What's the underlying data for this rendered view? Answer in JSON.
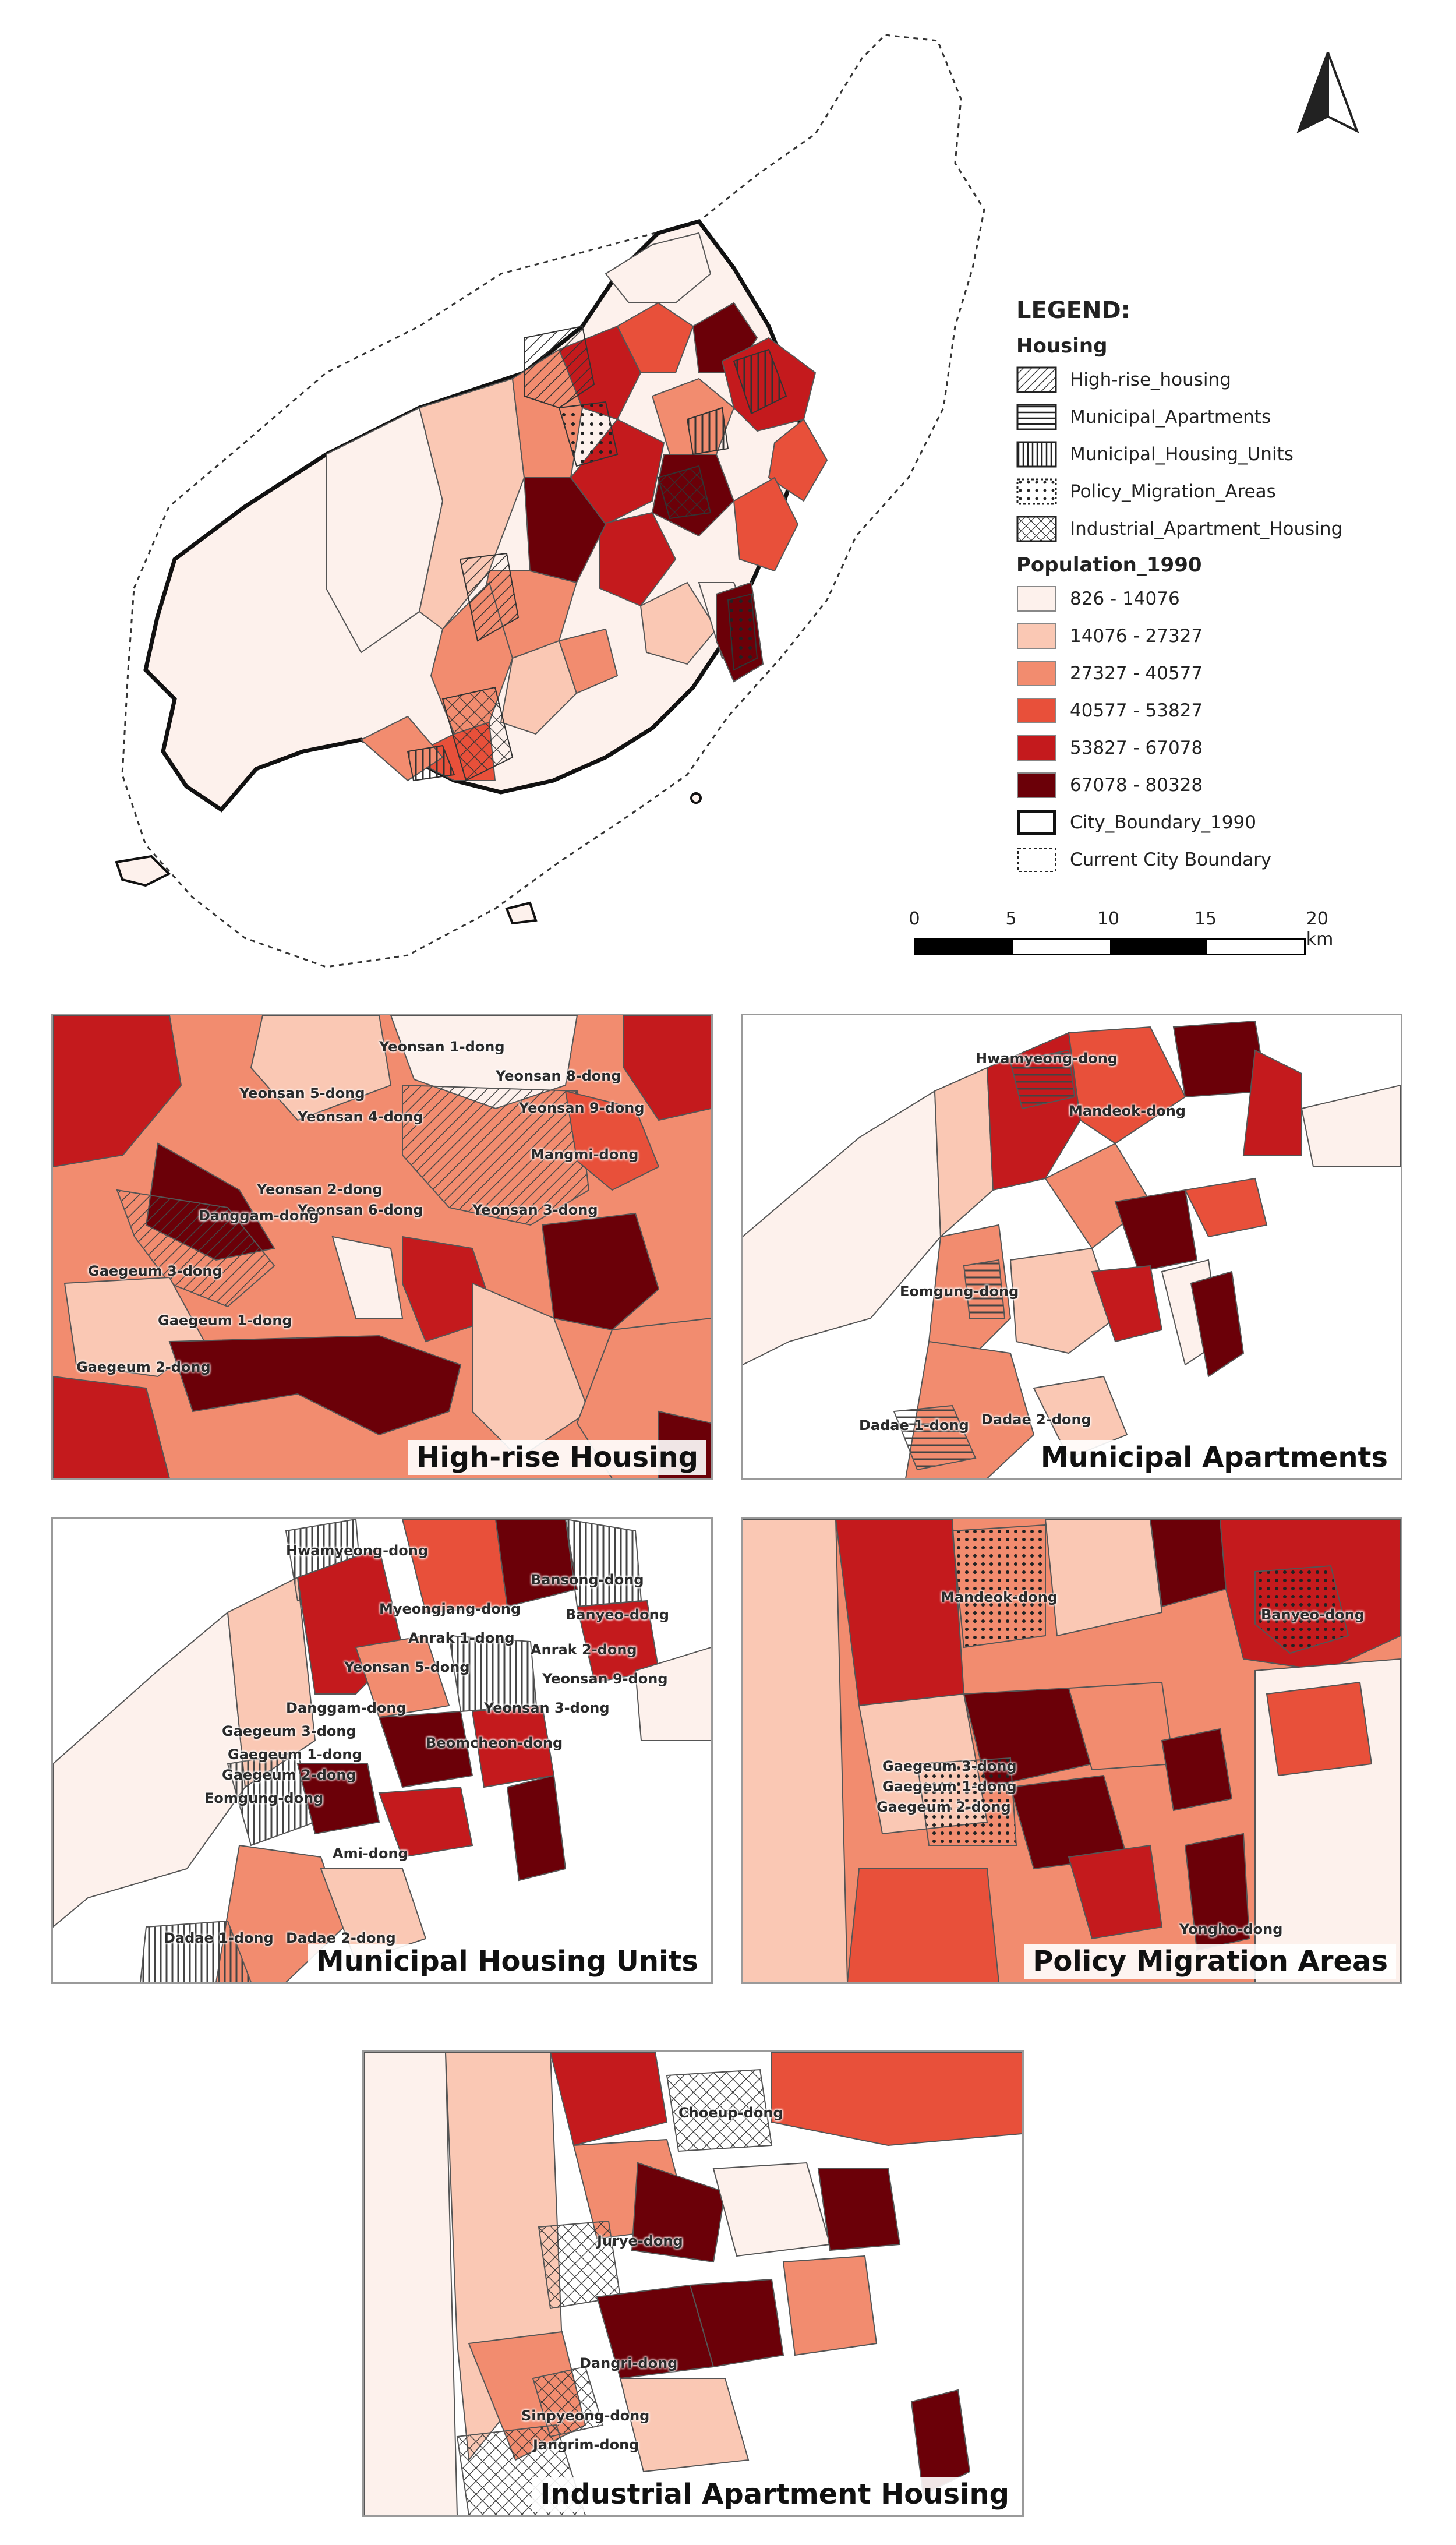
{
  "legend": {
    "title": "LEGEND:",
    "housing_title": "Housing",
    "housing": [
      {
        "label": "High-rise_housing",
        "pattern": "diagonal"
      },
      {
        "label": "Municipal_Apartments",
        "pattern": "horizontal"
      },
      {
        "label": "Municipal_Housing_Units",
        "pattern": "vertical"
      },
      {
        "label": "Policy_Migration_Areas",
        "pattern": "dots"
      },
      {
        "label": "Industrial_Apartment_Housing",
        "pattern": "crosshatch"
      }
    ],
    "population_title": "Population_1990",
    "population": [
      {
        "label": "826 - 14076",
        "color": "#fdf1ec"
      },
      {
        "label": "14076 - 27327",
        "color": "#fac8b4"
      },
      {
        "label": "27327 - 40577",
        "color": "#f28c6f"
      },
      {
        "label": "40577 - 53827",
        "color": "#e8503a"
      },
      {
        "label": "53827 - 67078",
        "color": "#c41a1d"
      },
      {
        "label": "67078 - 80328",
        "color": "#6b0008"
      }
    ],
    "boundaries": [
      {
        "label": "City_Boundary_1990",
        "style": "thick-solid"
      },
      {
        "label": "Current City Boundary",
        "style": "dashed"
      }
    ]
  },
  "scalebar": {
    "ticks": [
      "0",
      "5",
      "10",
      "15",
      "20 km"
    ]
  },
  "insets": [
    {
      "title": "High-rise Housing",
      "places": [
        "Yeonsan 1-dong",
        "Yeonsan 5-dong",
        "Yeonsan 8-dong",
        "Yeonsan 4-dong",
        "Yeonsan 9-dong",
        "Yeonsan 2-dong",
        "Mangmi-dong",
        "Yeonsan 6-dong",
        "Yeonsan 3-dong",
        "Danggam-dong",
        "Gaegeum 3-dong",
        "Gaegeum 1-dong",
        "Gaegeum 2-dong"
      ]
    },
    {
      "title": "Municipal Apartments",
      "places": [
        "Hwamyeong-dong",
        "Mandeok-dong",
        "Eomgung-dong",
        "Dadae 1-dong",
        "Dadae 2-dong"
      ]
    },
    {
      "title": "Municipal Housing Units",
      "places": [
        "Hwamyeong-dong",
        "Bansong-dong",
        "Myeongjang-dong",
        "Banyeo-dong",
        "Anrak 1-dong",
        "Anrak 2-dong",
        "Yeonsan 5-dong",
        "Yeonsan 9-dong",
        "Danggam-dong",
        "Yeonsan 3-dong",
        "Gaegeum 3-dong",
        "Beomcheon-dong",
        "Gaegeum 1-dong",
        "Gaegeum 2-dong",
        "Eomgung-dong",
        "Ami-dong",
        "Dadae 1-dong",
        "Dadae 2-dong"
      ]
    },
    {
      "title": "Policy Migration Areas",
      "places": [
        "Mandeok-dong",
        "Banyeo-dong",
        "Gaegeum 3-dong",
        "Gaegeum 1-dong",
        "Gaegeum 2-dong",
        "Yongho-dong"
      ]
    },
    {
      "title": "Industrial Apartment Housing",
      "places": [
        "Choeup-dong",
        "Jurye-dong",
        "Dangri-dong",
        "Sinpyeong-dong",
        "Jangrim-dong"
      ]
    }
  ]
}
